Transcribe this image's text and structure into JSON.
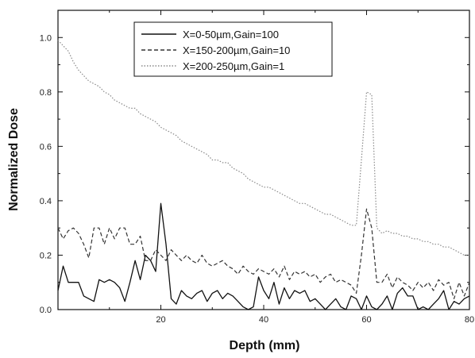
{
  "chart_data": {
    "type": "line",
    "xlabel": "Depth (mm)",
    "ylabel": "Normalized Dose",
    "xlim": [
      0,
      80
    ],
    "ylim": [
      0,
      1.1
    ],
    "x_ticks": [
      "20",
      "40",
      "60",
      "80"
    ],
    "y_ticks": [
      "0.0",
      "0.2",
      "0.4",
      "0.6",
      "0.8",
      "1.0"
    ],
    "grid": false,
    "legend_position": "top-center",
    "series": [
      {
        "name": "X=0-50µm,Gain=100",
        "style": "solid",
        "color": "#111111",
        "x": [
          0,
          1,
          2,
          3,
          4,
          5,
          6,
          7,
          8,
          9,
          10,
          11,
          12,
          13,
          14,
          15,
          16,
          17,
          18,
          19,
          20,
          21,
          22,
          23,
          24,
          25,
          26,
          27,
          28,
          29,
          30,
          31,
          32,
          33,
          34,
          35,
          36,
          37,
          38,
          39,
          40,
          41,
          42,
          43,
          44,
          45,
          46,
          47,
          48,
          49,
          50,
          51,
          52,
          53,
          54,
          55,
          56,
          57,
          58,
          59,
          60,
          61,
          62,
          63,
          64,
          65,
          66,
          67,
          68,
          69,
          70,
          71,
          72,
          73,
          74,
          75,
          76,
          77,
          78,
          79,
          80
        ],
        "y": [
          0.07,
          0.16,
          0.1,
          0.1,
          0.1,
          0.05,
          0.04,
          0.03,
          0.11,
          0.1,
          0.11,
          0.1,
          0.08,
          0.03,
          0.1,
          0.18,
          0.11,
          0.2,
          0.18,
          0.14,
          0.39,
          0.24,
          0.04,
          0.02,
          0.07,
          0.05,
          0.04,
          0.06,
          0.07,
          0.03,
          0.06,
          0.07,
          0.04,
          0.06,
          0.05,
          0.03,
          0.01,
          0.0,
          0.01,
          0.12,
          0.07,
          0.04,
          0.1,
          0.02,
          0.08,
          0.04,
          0.07,
          0.06,
          0.07,
          0.03,
          0.04,
          0.02,
          0.0,
          0.02,
          0.04,
          0.01,
          0.0,
          0.05,
          0.04,
          0.0,
          0.05,
          0.01,
          0.0,
          0.02,
          0.05,
          0.0,
          0.06,
          0.08,
          0.05,
          0.05,
          0.0,
          0.01,
          0.0,
          0.02,
          0.04,
          0.07,
          0.0,
          0.03,
          0.02,
          0.04,
          0.05
        ]
      },
      {
        "name": "X=150-200µm,Gain=10",
        "style": "dashed",
        "color": "#333333",
        "x": [
          0,
          1,
          2,
          3,
          4,
          5,
          6,
          7,
          8,
          9,
          10,
          11,
          12,
          13,
          14,
          15,
          16,
          17,
          18,
          19,
          20,
          21,
          22,
          23,
          24,
          25,
          26,
          27,
          28,
          29,
          30,
          31,
          32,
          33,
          34,
          35,
          36,
          37,
          38,
          39,
          40,
          41,
          42,
          43,
          44,
          45,
          46,
          47,
          48,
          49,
          50,
          51,
          52,
          53,
          54,
          55,
          56,
          57,
          58,
          59,
          60,
          61,
          62,
          63,
          64,
          65,
          66,
          67,
          68,
          69,
          70,
          71,
          72,
          73,
          74,
          75,
          76,
          77,
          78,
          79,
          80
        ],
        "y": [
          0.3,
          0.26,
          0.29,
          0.3,
          0.28,
          0.24,
          0.19,
          0.3,
          0.3,
          0.24,
          0.3,
          0.26,
          0.3,
          0.3,
          0.24,
          0.24,
          0.27,
          0.18,
          0.18,
          0.22,
          0.2,
          0.18,
          0.22,
          0.2,
          0.18,
          0.2,
          0.18,
          0.17,
          0.2,
          0.17,
          0.16,
          0.17,
          0.18,
          0.16,
          0.15,
          0.13,
          0.16,
          0.14,
          0.13,
          0.15,
          0.14,
          0.13,
          0.15,
          0.12,
          0.16,
          0.11,
          0.14,
          0.13,
          0.14,
          0.12,
          0.13,
          0.1,
          0.12,
          0.13,
          0.1,
          0.11,
          0.1,
          0.09,
          0.06,
          0.2,
          0.37,
          0.3,
          0.1,
          0.1,
          0.13,
          0.08,
          0.12,
          0.1,
          0.09,
          0.07,
          0.1,
          0.08,
          0.1,
          0.07,
          0.11,
          0.09,
          0.1,
          0.04,
          0.1,
          0.05,
          0.1
        ]
      },
      {
        "name": "X=200-250µm,Gain=1",
        "style": "dotted",
        "color": "#8a8a8a",
        "x": [
          0,
          1,
          2,
          3,
          4,
          5,
          6,
          7,
          8,
          9,
          10,
          11,
          12,
          13,
          14,
          15,
          16,
          17,
          18,
          19,
          20,
          21,
          22,
          23,
          24,
          25,
          26,
          27,
          28,
          29,
          30,
          31,
          32,
          33,
          34,
          35,
          36,
          37,
          38,
          39,
          40,
          41,
          42,
          43,
          44,
          45,
          46,
          47,
          48,
          49,
          50,
          51,
          52,
          53,
          54,
          55,
          56,
          57,
          58,
          59,
          60,
          61,
          62,
          63,
          64,
          65,
          66,
          67,
          68,
          69,
          70,
          71,
          72,
          73,
          74,
          75,
          76,
          77,
          78,
          79,
          80
        ],
        "y": [
          0.99,
          0.97,
          0.95,
          0.91,
          0.88,
          0.86,
          0.84,
          0.83,
          0.82,
          0.8,
          0.79,
          0.77,
          0.76,
          0.75,
          0.74,
          0.74,
          0.72,
          0.71,
          0.7,
          0.69,
          0.67,
          0.66,
          0.65,
          0.64,
          0.62,
          0.61,
          0.6,
          0.59,
          0.58,
          0.57,
          0.55,
          0.55,
          0.54,
          0.54,
          0.52,
          0.51,
          0.5,
          0.48,
          0.47,
          0.46,
          0.45,
          0.45,
          0.44,
          0.43,
          0.42,
          0.41,
          0.4,
          0.39,
          0.39,
          0.38,
          0.37,
          0.36,
          0.35,
          0.35,
          0.34,
          0.33,
          0.32,
          0.31,
          0.31,
          0.55,
          0.8,
          0.79,
          0.3,
          0.28,
          0.29,
          0.28,
          0.28,
          0.27,
          0.27,
          0.26,
          0.26,
          0.25,
          0.25,
          0.24,
          0.24,
          0.23,
          0.23,
          0.22,
          0.21,
          0.2,
          0.2
        ]
      }
    ]
  }
}
